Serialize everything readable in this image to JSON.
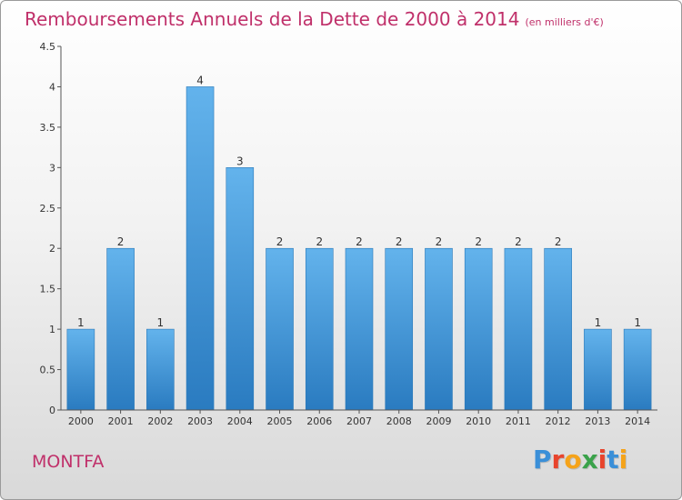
{
  "title": "Remboursements Annuels de la Dette de 2000 à 2014",
  "unit": "(en milliers d'€)",
  "place": "MONTFA",
  "logo": {
    "text": "Proxiti",
    "colors": [
      "#3a8fd8",
      "#e8442c",
      "#f5a31a",
      "#3aa24a",
      "#e8442c",
      "#3a8fd8",
      "#f5a31a"
    ]
  },
  "colors": {
    "bar_top": "#63b3ec",
    "bar_bottom": "#2a7bc0",
    "accent": "#c0306a"
  },
  "chart_data": {
    "type": "bar",
    "categories": [
      "2000",
      "2001",
      "2002",
      "2003",
      "2004",
      "2005",
      "2006",
      "2007",
      "2008",
      "2009",
      "2010",
      "2011",
      "2012",
      "2013",
      "2014"
    ],
    "values": [
      1,
      2,
      1,
      4,
      3,
      2,
      2,
      2,
      2,
      2,
      2,
      2,
      2,
      1,
      1
    ],
    "data_labels": [
      "1",
      "2",
      "1",
      "4",
      "3",
      "2",
      "2",
      "2",
      "2",
      "2",
      "2",
      "2",
      "2",
      "1",
      "1"
    ],
    "yticks": [
      "0",
      "0.5",
      "1",
      "1.5",
      "2",
      "2.5",
      "3",
      "3.5",
      "4",
      "4.5"
    ],
    "ylim": [
      0,
      4.5
    ],
    "grid": false,
    "legend": "none"
  }
}
